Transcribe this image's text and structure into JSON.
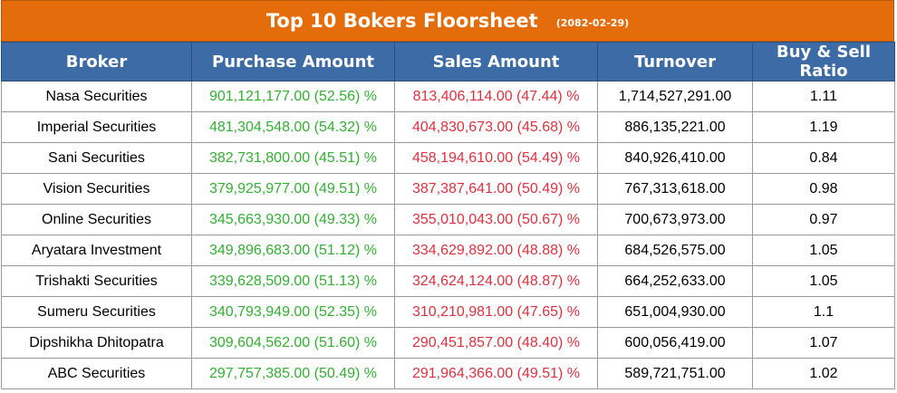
{
  "title": "Top 10 Bokers Floorsheet",
  "date": "(2082-02-29)",
  "colors": {
    "title_bg": "#e46c0a",
    "header_bg": "#3c6ba5",
    "buy": "#32b032",
    "sell": "#e0303f"
  },
  "headers": [
    "Broker",
    "Purchase Amount",
    "Sales Amount",
    "Turnover",
    "Buy & Sell Ratio"
  ],
  "rows": [
    {
      "broker": "Nasa Securities",
      "purchase": "901,121,177.00 (52.56) %",
      "sales": "813,406,114.00 (47.44) %",
      "turnover": "1,714,527,291.00",
      "ratio": "1.11"
    },
    {
      "broker": "Imperial Securities",
      "purchase": "481,304,548.00 (54.32) %",
      "sales": "404,830,673.00 (45.68) %",
      "turnover": "886,135,221.00",
      "ratio": "1.19"
    },
    {
      "broker": "Sani Securities",
      "purchase": "382,731,800.00 (45.51) %",
      "sales": "458,194,610.00 (54.49) %",
      "turnover": "840,926,410.00",
      "ratio": "0.84"
    },
    {
      "broker": "Vision Securities",
      "purchase": "379,925,977.00 (49.51) %",
      "sales": "387,387,641.00 (50.49) %",
      "turnover": "767,313,618.00",
      "ratio": "0.98"
    },
    {
      "broker": "Online Securities",
      "purchase": "345,663,930.00 (49.33) %",
      "sales": "355,010,043.00 (50.67) %",
      "turnover": "700,673,973.00",
      "ratio": "0.97"
    },
    {
      "broker": "Aryatara Investment",
      "purchase": "349,896,683.00 (51.12) %",
      "sales": "334,629,892.00 (48.88) %",
      "turnover": "684,526,575.00",
      "ratio": "1.05"
    },
    {
      "broker": "Trishakti Securities",
      "purchase": "339,628,509.00 (51.13) %",
      "sales": "324,624,124.00 (48.87) %",
      "turnover": "664,252,633.00",
      "ratio": "1.05"
    },
    {
      "broker": "Sumeru Securities",
      "purchase": "340,793,949.00 (52.35) %",
      "sales": "310,210,981.00 (47.65) %",
      "turnover": "651,004,930.00",
      "ratio": "1.1"
    },
    {
      "broker": "Dipshikha Dhitopatra",
      "purchase": "309,604,562.00 (51.60) %",
      "sales": "290,451,857.00 (48.40) %",
      "turnover": "600,056,419.00",
      "ratio": "1.07"
    },
    {
      "broker": "ABC Securities",
      "purchase": "297,757,385.00 (50.49) %",
      "sales": "291,964,366.00 (49.51) %",
      "turnover": "589,721,751.00",
      "ratio": "1.02"
    }
  ]
}
